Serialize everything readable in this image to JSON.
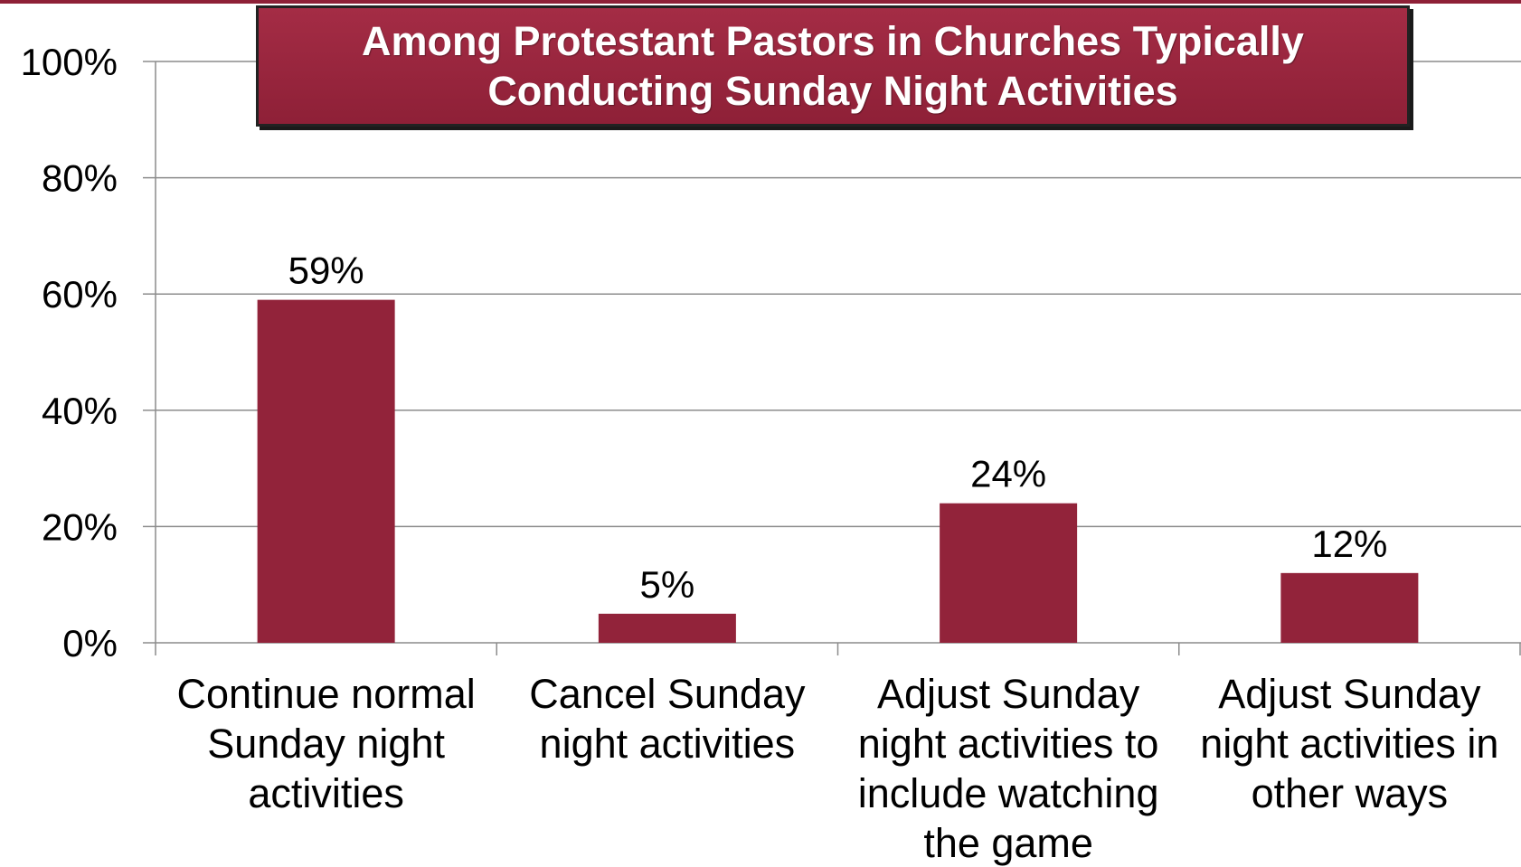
{
  "title_lines": [
    "Among Protestant Pastors in Churches Typically",
    "Conducting Sunday Night Activities"
  ],
  "colors": {
    "bar": "#92233a",
    "grid": "#8c8c8c",
    "axis": "#8c8c8c",
    "title_bg": "#92233a",
    "text": "#000000"
  },
  "chart_data": {
    "type": "bar",
    "title": "Among Protestant Pastors in Churches Typically Conducting Sunday Night Activities",
    "categories": [
      [
        "Continue normal",
        "Sunday night",
        "activities"
      ],
      [
        "Cancel Sunday",
        "night activities"
      ],
      [
        "Adjust Sunday",
        "night activities to",
        "include watching",
        "the game"
      ],
      [
        "Adjust Sunday",
        "night activities in",
        "other ways"
      ]
    ],
    "values": [
      59,
      5,
      24,
      12
    ],
    "data_labels": [
      "59%",
      "5%",
      "24%",
      "12%"
    ],
    "yticks": [
      "0%",
      "20%",
      "40%",
      "60%",
      "80%",
      "100%"
    ],
    "ylim": [
      0,
      100
    ],
    "xlabel": "",
    "ylabel": "",
    "grid": true,
    "legend": "none"
  }
}
